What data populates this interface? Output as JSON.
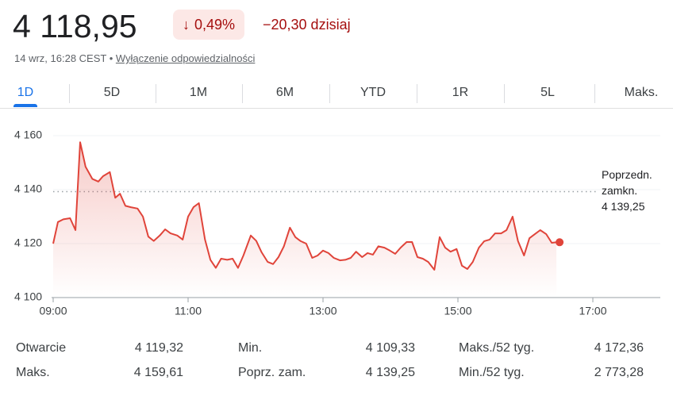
{
  "header": {
    "price": "4 118,95",
    "arrow": "↓",
    "change_pct": "0,49%",
    "change_abs": "−20,30 dzisiaj",
    "timestamp": "14 wrz, 16:28 CEST •",
    "disclaimer": "Wyłączenie odpowiedzialności"
  },
  "tabs": [
    "1D",
    "5D",
    "1M",
    "6M",
    "YTD",
    "1R",
    "5L",
    "Maks."
  ],
  "chart_data": {
    "type": "line",
    "color": "#e0443a",
    "x": [
      9.0,
      9.07,
      9.15,
      9.25,
      9.33,
      9.4,
      9.48,
      9.58,
      9.67,
      9.74,
      9.84,
      9.92,
      9.99,
      10.07,
      10.15,
      10.25,
      10.33,
      10.41,
      10.49,
      10.58,
      10.66,
      10.74,
      10.84,
      10.92,
      11.0,
      11.08,
      11.16,
      11.25,
      11.33,
      11.41,
      11.49,
      11.58,
      11.66,
      11.74,
      11.82,
      11.93,
      12.01,
      12.09,
      12.18,
      12.26,
      12.34,
      12.42,
      12.51,
      12.59,
      12.67,
      12.75,
      12.84,
      12.92,
      13.0,
      13.08,
      13.16,
      13.25,
      13.33,
      13.41,
      13.49,
      13.58,
      13.66,
      13.74,
      13.82,
      13.91,
      13.99,
      14.07,
      14.15,
      14.24,
      14.32,
      14.4,
      14.48,
      14.56,
      14.65,
      14.73,
      14.81,
      14.89,
      14.98,
      15.06,
      15.14,
      15.22,
      15.31,
      15.39,
      15.47,
      15.55,
      15.64,
      15.72,
      15.81,
      15.89,
      15.98,
      16.06,
      16.14,
      16.22,
      16.31,
      16.39,
      16.46
    ],
    "values": [
      4120,
      4128,
      4129,
      4129.4,
      4125,
      4157.6,
      4148.5,
      4144,
      4143,
      4145,
      4146.5,
      4137,
      4138.5,
      4134,
      4133.5,
      4133,
      4130,
      4122.6,
      4121,
      4123,
      4125.3,
      4123.8,
      4123,
      4121.5,
      4130,
      4133.5,
      4135,
      4121.5,
      4114,
      4111,
      4114.4,
      4114,
      4114.4,
      4111,
      4115.6,
      4123,
      4121,
      4116.8,
      4113.2,
      4112.4,
      4115,
      4119,
      4125.9,
      4122.4,
      4120.9,
      4120,
      4114.7,
      4115.6,
      4117.4,
      4116.5,
      4114.7,
      4113.8,
      4114,
      4114.7,
      4117,
      4115,
      4116.5,
      4115.9,
      4119,
      4118.5,
      4117.4,
      4116.2,
      4118.5,
      4120.6,
      4120.6,
      4115,
      4114.4,
      4113.2,
      4110.3,
      4122.4,
      4118.5,
      4117,
      4118,
      4111.8,
      4110.6,
      4113.2,
      4118.5,
      4120.9,
      4121.5,
      4123.8,
      4123.8,
      4125,
      4130,
      4120.9,
      4115.6,
      4122,
      4123.5,
      4125,
      4123.5,
      4120.3,
      4120.5
    ],
    "xlim": [
      9,
      18
    ],
    "ylim": [
      4100,
      4160
    ],
    "xticks": [
      {
        "value": 9,
        "label": "09:00"
      },
      {
        "value": 11,
        "label": "11:00"
      },
      {
        "value": 13,
        "label": "13:00"
      },
      {
        "value": 15,
        "label": "15:00"
      },
      {
        "value": 17,
        "label": "17:00"
      }
    ],
    "yticks": [
      {
        "value": 4100,
        "label": "4 100"
      },
      {
        "value": 4120,
        "label": "4 120"
      },
      {
        "value": 4140,
        "label": "4 140"
      },
      {
        "value": 4160,
        "label": "4 160"
      }
    ],
    "grid": true,
    "reference_line": {
      "name": "Poprzedn. zamkn.",
      "value": 4139.25,
      "label": "4 139,25"
    }
  },
  "stats": [
    {
      "label": "Otwarcie",
      "value": "4 119,32"
    },
    {
      "label": "Maks.",
      "value": "4 159,61"
    },
    {
      "label": "Min.",
      "value": "4 109,33"
    },
    {
      "label": "Poprz. zam.",
      "value": "4 139,25"
    },
    {
      "label": "Maks./52 tyg.",
      "value": "4 172,36"
    },
    {
      "label": "Min./52 tyg.",
      "value": "2 773,28"
    }
  ]
}
